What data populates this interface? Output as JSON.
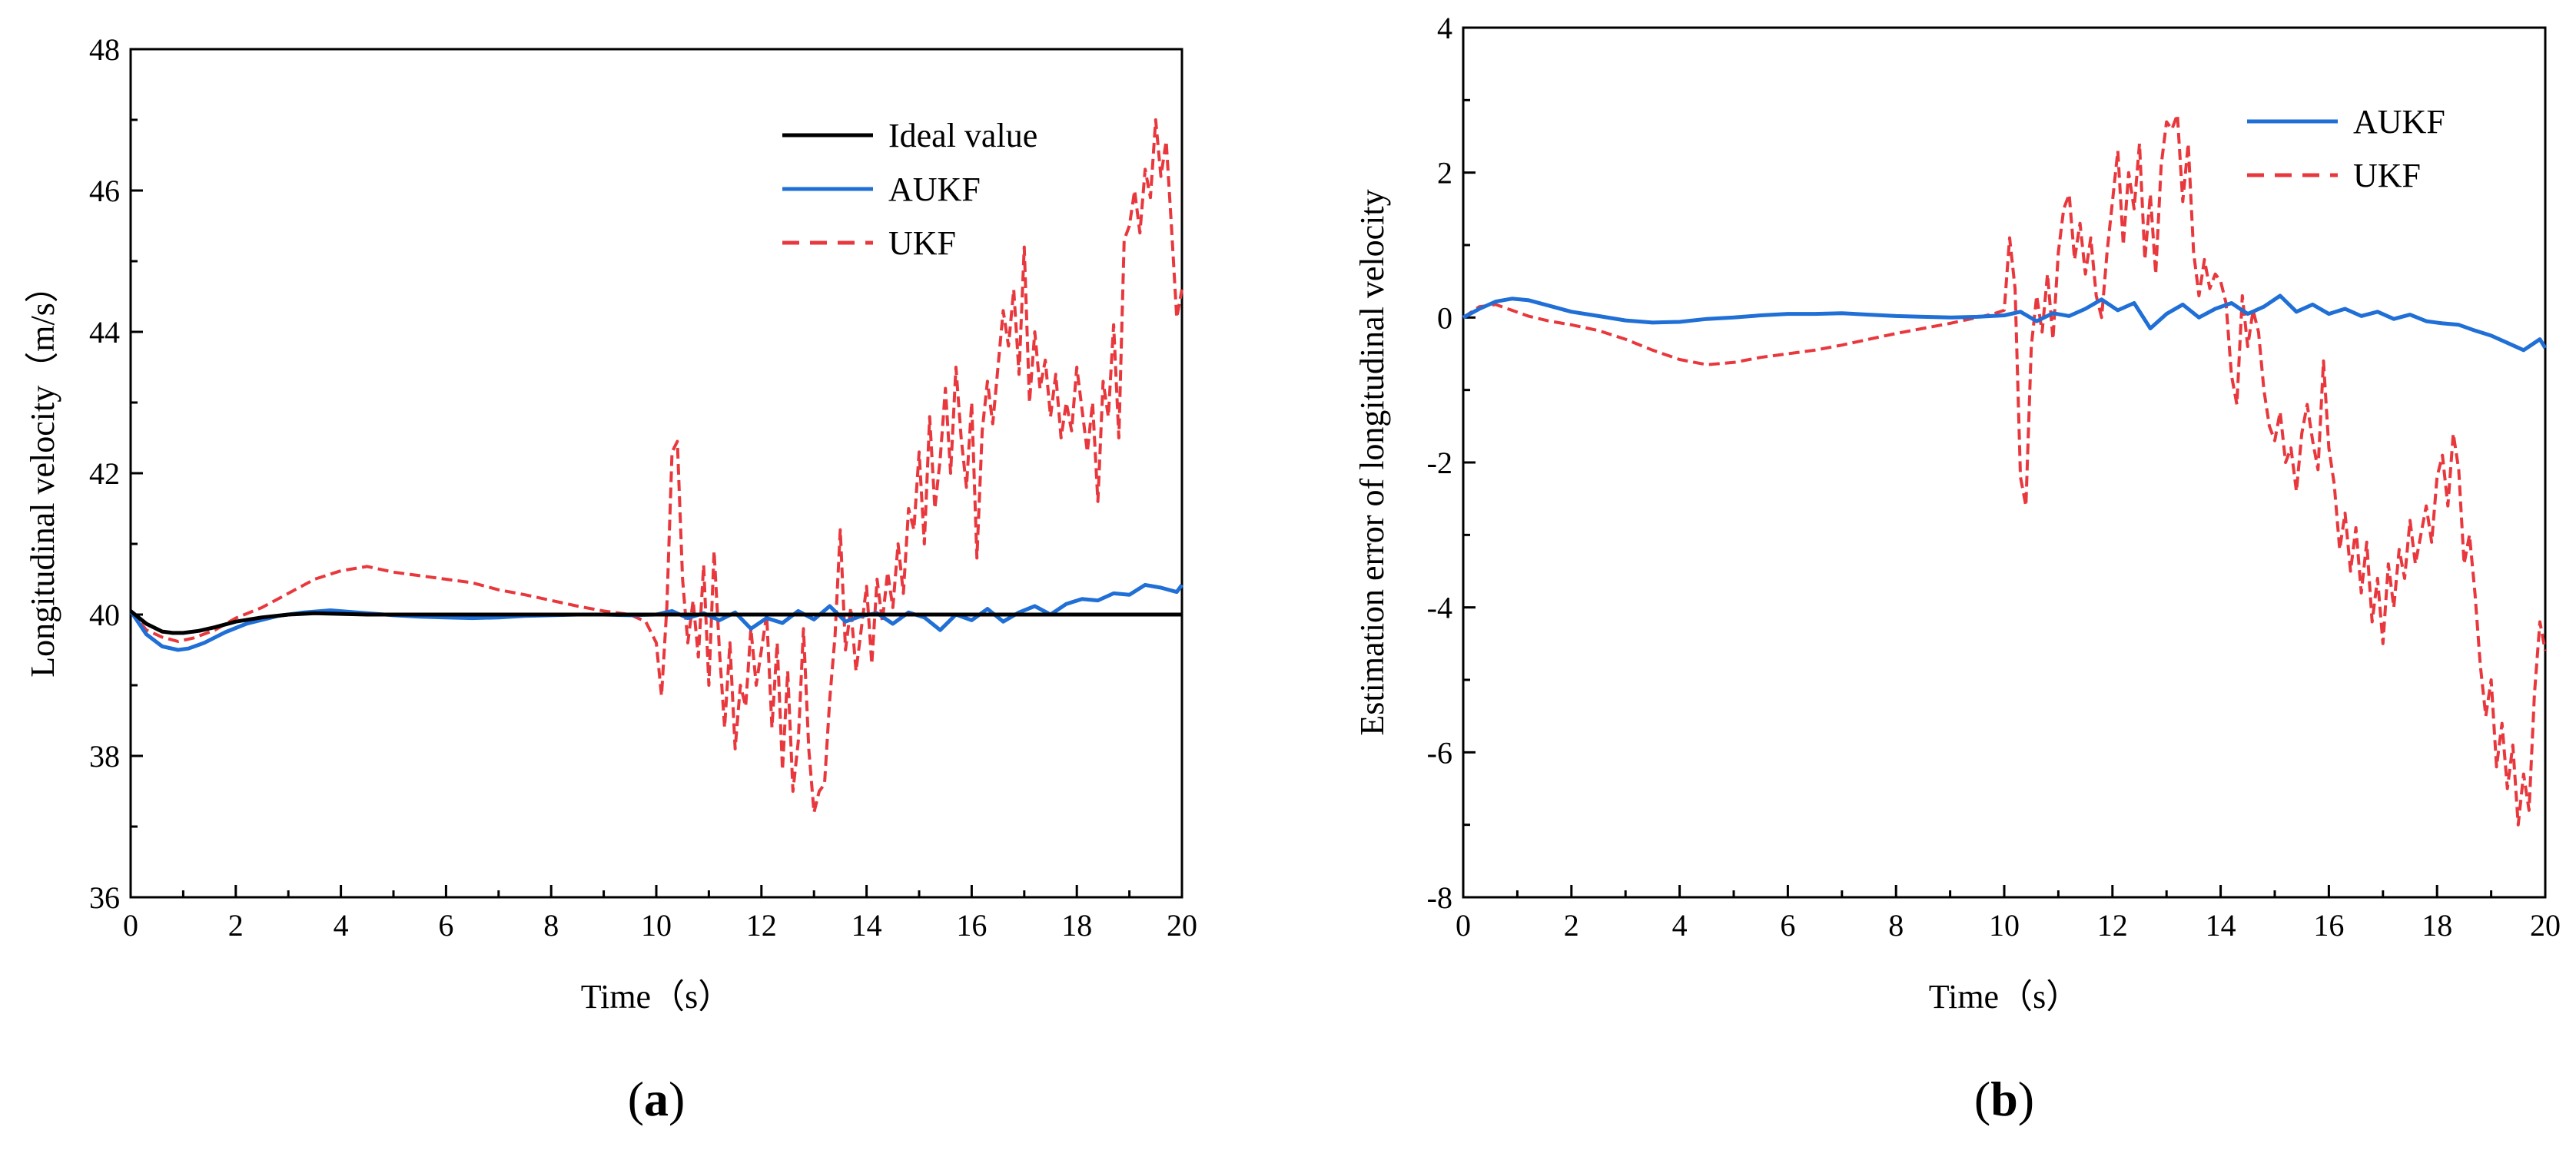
{
  "figure": {
    "panels": [
      "a",
      "b"
    ]
  },
  "chart_data": [
    {
      "panel_label": "a",
      "type": "line",
      "title": "",
      "xlabel": "Time（s）",
      "ylabel": "Longitudinal velocity（m/s）",
      "xlim": [
        0,
        20
      ],
      "ylim": [
        36,
        48
      ],
      "xticks": [
        0,
        2,
        4,
        6,
        8,
        10,
        12,
        14,
        16,
        18,
        20
      ],
      "yticks": [
        36,
        38,
        40,
        42,
        44,
        46,
        48
      ],
      "grid": false,
      "legend_position": "top-right",
      "series": [
        {
          "name": "Ideal value",
          "color": "#000000",
          "style": "solid",
          "x": [
            0,
            0.3,
            0.6,
            0.8,
            1.0,
            1.3,
            1.6,
            2.0,
            2.5,
            3.0,
            3.5,
            4.0,
            4.5,
            5.0,
            6.0,
            8.0,
            10.0,
            12.0,
            14.0,
            16.0,
            18.0,
            20.0
          ],
          "y": [
            40.05,
            39.87,
            39.76,
            39.74,
            39.74,
            39.77,
            39.82,
            39.9,
            39.96,
            40.0,
            40.02,
            40.01,
            40.0,
            40.0,
            40.0,
            40.0,
            40.0,
            40.0,
            40.0,
            40.0,
            40.0,
            40.0
          ]
        },
        {
          "name": "AUKF",
          "color": "#1f6fd6",
          "style": "solid",
          "x": [
            0,
            0.3,
            0.6,
            0.9,
            1.1,
            1.4,
            1.8,
            2.2,
            2.8,
            3.3,
            3.8,
            4.3,
            5.0,
            5.5,
            6.0,
            6.5,
            7.0,
            7.5,
            8.0,
            8.5,
            9.0,
            9.5,
            10.0,
            10.3,
            10.6,
            10.9,
            11.2,
            11.5,
            11.8,
            12.1,
            12.4,
            12.7,
            13.0,
            13.3,
            13.6,
            13.9,
            14.2,
            14.5,
            14.8,
            15.1,
            15.4,
            15.7,
            16.0,
            16.3,
            16.6,
            16.9,
            17.2,
            17.5,
            17.8,
            18.1,
            18.4,
            18.7,
            19.0,
            19.3,
            19.6,
            19.9,
            20.0
          ],
          "y": [
            40.05,
            39.72,
            39.55,
            39.5,
            39.52,
            39.6,
            39.75,
            39.87,
            39.98,
            40.03,
            40.06,
            40.03,
            39.99,
            39.97,
            39.96,
            39.95,
            39.96,
            39.98,
            39.99,
            40.0,
            40.0,
            39.99,
            40.0,
            40.05,
            39.95,
            40.02,
            39.92,
            40.03,
            39.8,
            39.95,
            39.88,
            40.05,
            39.93,
            40.12,
            39.9,
            39.98,
            40.02,
            39.87,
            40.03,
            39.96,
            39.78,
            40.0,
            39.92,
            40.08,
            39.9,
            40.03,
            40.12,
            40.0,
            40.15,
            40.22,
            40.2,
            40.3,
            40.28,
            40.42,
            40.38,
            40.32,
            40.42
          ]
        },
        {
          "name": "UKF",
          "color": "#e8383d",
          "style": "dashed",
          "x": [
            0,
            0.3,
            0.6,
            0.9,
            1.2,
            1.6,
            2.0,
            2.5,
            3.0,
            3.5,
            4.0,
            4.5,
            5.0,
            5.5,
            6.0,
            6.5,
            7.0,
            7.5,
            8.0,
            8.5,
            9.0,
            9.5,
            9.8,
            10.0,
            10.1,
            10.2,
            10.3,
            10.4,
            10.5,
            10.6,
            10.7,
            10.8,
            10.9,
            11.0,
            11.1,
            11.2,
            11.3,
            11.4,
            11.5,
            11.6,
            11.7,
            11.8,
            11.9,
            12.0,
            12.1,
            12.2,
            12.3,
            12.4,
            12.5,
            12.6,
            12.7,
            12.8,
            12.9,
            13.0,
            13.1,
            13.2,
            13.3,
            13.4,
            13.5,
            13.6,
            13.7,
            13.8,
            13.9,
            14.0,
            14.1,
            14.2,
            14.3,
            14.4,
            14.5,
            14.6,
            14.7,
            14.8,
            14.9,
            15.0,
            15.1,
            15.2,
            15.3,
            15.4,
            15.5,
            15.6,
            15.7,
            15.8,
            15.9,
            16.0,
            16.1,
            16.2,
            16.3,
            16.4,
            16.5,
            16.6,
            16.7,
            16.8,
            16.9,
            17.0,
            17.1,
            17.2,
            17.3,
            17.4,
            17.5,
            17.6,
            17.7,
            17.8,
            17.9,
            18.0,
            18.1,
            18.2,
            18.3,
            18.4,
            18.5,
            18.6,
            18.7,
            18.8,
            18.9,
            19.0,
            19.1,
            19.2,
            19.3,
            19.4,
            19.5,
            19.6,
            19.7,
            19.8,
            19.9,
            20.0
          ],
          "y": [
            40.05,
            39.78,
            39.68,
            39.62,
            39.67,
            39.78,
            39.95,
            40.1,
            40.3,
            40.5,
            40.62,
            40.68,
            40.6,
            40.55,
            40.5,
            40.45,
            40.35,
            40.28,
            40.2,
            40.12,
            40.05,
            40.0,
            39.9,
            39.6,
            38.85,
            40.1,
            42.3,
            42.45,
            40.5,
            39.6,
            40.2,
            39.4,
            40.7,
            39.0,
            40.9,
            39.5,
            38.4,
            39.6,
            38.1,
            39.0,
            38.7,
            39.8,
            39.0,
            39.5,
            40.0,
            38.4,
            39.6,
            37.8,
            39.2,
            37.5,
            38.2,
            39.8,
            38.1,
            37.2,
            37.5,
            37.6,
            38.8,
            39.7,
            41.2,
            39.5,
            40.1,
            39.2,
            39.8,
            40.4,
            39.3,
            40.5,
            39.9,
            40.6,
            40.1,
            41.0,
            40.3,
            41.5,
            41.2,
            42.3,
            41.0,
            42.8,
            41.5,
            42.2,
            43.2,
            42.0,
            43.5,
            42.5,
            41.8,
            43.0,
            40.8,
            42.6,
            43.3,
            42.7,
            43.5,
            44.3,
            43.8,
            44.6,
            43.4,
            45.2,
            43.0,
            44.0,
            43.2,
            43.6,
            42.8,
            43.4,
            42.5,
            43.0,
            42.6,
            43.5,
            42.9,
            42.3,
            43.0,
            41.6,
            43.3,
            42.8,
            44.1,
            42.5,
            45.3,
            45.5,
            46.0,
            45.4,
            46.3,
            45.9,
            47.0,
            46.2,
            46.7,
            45.5,
            44.2,
            44.6
          ]
        }
      ]
    },
    {
      "panel_label": "b",
      "type": "line",
      "title": "",
      "xlabel": "Time（s）",
      "ylabel": "Estimation error of  longitudinal velocity",
      "xlim": [
        0,
        20
      ],
      "ylim": [
        -8,
        4
      ],
      "xticks": [
        0,
        2,
        4,
        6,
        8,
        10,
        12,
        14,
        16,
        18,
        20
      ],
      "yticks": [
        -8,
        -6,
        -4,
        -2,
        0,
        2,
        4
      ],
      "grid": false,
      "legend_position": "top-right",
      "series": [
        {
          "name": "AUKF",
          "color": "#1f6fd6",
          "style": "solid",
          "x": [
            0,
            0.3,
            0.6,
            0.9,
            1.2,
            1.6,
            2.0,
            2.5,
            3.0,
            3.5,
            4.0,
            4.5,
            5.0,
            5.5,
            6.0,
            6.5,
            7.0,
            7.5,
            8.0,
            8.5,
            9.0,
            9.5,
            10.0,
            10.3,
            10.6,
            10.9,
            11.2,
            11.5,
            11.8,
            12.1,
            12.4,
            12.7,
            13.0,
            13.3,
            13.6,
            13.9,
            14.2,
            14.5,
            14.8,
            15.1,
            15.4,
            15.7,
            16.0,
            16.3,
            16.6,
            16.9,
            17.2,
            17.5,
            17.8,
            18.1,
            18.4,
            18.7,
            19.0,
            19.3,
            19.6,
            19.9,
            20.0
          ],
          "y": [
            0.0,
            0.12,
            0.22,
            0.26,
            0.24,
            0.16,
            0.08,
            0.02,
            -0.04,
            -0.07,
            -0.06,
            -0.02,
            0.0,
            0.03,
            0.05,
            0.05,
            0.06,
            0.04,
            0.02,
            0.01,
            0.0,
            0.01,
            0.03,
            0.08,
            -0.05,
            0.06,
            0.02,
            0.12,
            0.25,
            0.1,
            0.2,
            -0.15,
            0.05,
            0.18,
            0.0,
            0.12,
            0.2,
            0.05,
            0.15,
            0.3,
            0.08,
            0.18,
            0.05,
            0.12,
            0.02,
            0.08,
            -0.02,
            0.04,
            -0.05,
            -0.08,
            -0.1,
            -0.18,
            -0.25,
            -0.35,
            -0.45,
            -0.3,
            -0.42
          ]
        },
        {
          "name": "UKF",
          "color": "#e8383d",
          "style": "dashed",
          "x": [
            0,
            0.3,
            0.6,
            0.9,
            1.2,
            1.6,
            2.0,
            2.5,
            3.0,
            3.5,
            4.0,
            4.5,
            5.0,
            5.5,
            6.0,
            6.5,
            7.0,
            7.5,
            8.0,
            8.5,
            9.0,
            9.5,
            9.8,
            10.0,
            10.1,
            10.2,
            10.3,
            10.4,
            10.5,
            10.6,
            10.7,
            10.8,
            10.9,
            11.0,
            11.1,
            11.2,
            11.3,
            11.4,
            11.5,
            11.6,
            11.7,
            11.8,
            11.9,
            12.0,
            12.1,
            12.2,
            12.3,
            12.4,
            12.5,
            12.6,
            12.7,
            12.8,
            12.9,
            13.0,
            13.1,
            13.2,
            13.3,
            13.4,
            13.5,
            13.6,
            13.7,
            13.8,
            13.9,
            14.0,
            14.1,
            14.2,
            14.3,
            14.4,
            14.5,
            14.6,
            14.7,
            14.8,
            14.9,
            15.0,
            15.1,
            15.2,
            15.3,
            15.4,
            15.5,
            15.6,
            15.7,
            15.8,
            15.9,
            16.0,
            16.1,
            16.2,
            16.3,
            16.4,
            16.5,
            16.6,
            16.7,
            16.8,
            16.9,
            17.0,
            17.1,
            17.2,
            17.3,
            17.4,
            17.5,
            17.6,
            17.7,
            17.8,
            17.9,
            18.0,
            18.1,
            18.2,
            18.3,
            18.4,
            18.5,
            18.6,
            18.7,
            18.8,
            18.9,
            19.0,
            19.1,
            19.2,
            19.3,
            19.4,
            19.5,
            19.6,
            19.7,
            19.8,
            19.9,
            20.0
          ],
          "y": [
            0.0,
            0.15,
            0.18,
            0.1,
            0.02,
            -0.05,
            -0.1,
            -0.18,
            -0.3,
            -0.45,
            -0.58,
            -0.65,
            -0.62,
            -0.55,
            -0.5,
            -0.45,
            -0.38,
            -0.3,
            -0.22,
            -0.15,
            -0.08,
            0.0,
            0.05,
            0.1,
            1.1,
            0.4,
            -2.2,
            -2.6,
            -0.4,
            0.3,
            -0.2,
            0.6,
            -0.3,
            0.9,
            1.5,
            1.7,
            0.8,
            1.3,
            0.6,
            1.1,
            0.3,
            0.0,
            0.9,
            1.6,
            2.3,
            1.0,
            2.0,
            1.5,
            2.4,
            0.8,
            1.7,
            0.6,
            2.1,
            2.7,
            2.6,
            2.8,
            1.6,
            2.4,
            0.9,
            0.3,
            0.8,
            0.4,
            0.6,
            0.5,
            0.2,
            -0.8,
            -1.2,
            0.3,
            -0.4,
            0.1,
            -0.2,
            -1.0,
            -1.5,
            -1.7,
            -1.3,
            -2.0,
            -1.8,
            -2.4,
            -1.6,
            -1.2,
            -1.7,
            -2.1,
            -0.6,
            -1.8,
            -2.3,
            -3.2,
            -2.7,
            -3.5,
            -2.9,
            -3.8,
            -3.1,
            -4.2,
            -3.6,
            -4.5,
            -3.4,
            -4.0,
            -3.2,
            -3.6,
            -2.8,
            -3.4,
            -3.0,
            -2.6,
            -3.1,
            -2.2,
            -1.9,
            -2.6,
            -1.6,
            -2.1,
            -3.4,
            -3.0,
            -3.8,
            -4.8,
            -5.5,
            -5.0,
            -6.2,
            -5.6,
            -6.5,
            -5.9,
            -7.0,
            -6.3,
            -6.8,
            -5.2,
            -4.2,
            -4.6
          ]
        }
      ]
    }
  ]
}
